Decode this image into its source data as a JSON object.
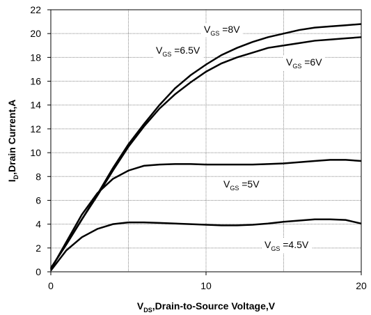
{
  "chart_data": {
    "type": "line",
    "x_label": {
      "text": "V",
      "sub": "DS",
      "after": ",Drain-to-Source Voltage,V"
    },
    "y_label": {
      "text": "I",
      "sub": "D",
      "after": ",Drain Current,A"
    },
    "x": [
      0,
      1,
      2,
      3,
      4,
      5,
      6,
      7,
      8,
      9,
      10,
      11,
      12,
      13,
      14,
      15,
      16,
      17,
      18,
      19,
      20
    ],
    "series": [
      {
        "color": "#000000",
        "values": [
          0.3,
          2.3,
          4.4,
          6.5,
          8.7,
          10.7,
          12.4,
          14.0,
          15.4,
          16.5,
          17.4,
          18.2,
          18.8,
          19.3,
          19.7,
          20.0,
          20.3,
          20.5,
          20.6,
          20.7,
          20.8
        ]
      },
      {
        "color": "#000000",
        "values": [
          0.3,
          2.3,
          4.4,
          6.4,
          8.5,
          10.5,
          12.2,
          13.7,
          14.9,
          15.9,
          16.8,
          17.5,
          18.0,
          18.4,
          18.8,
          19.0,
          19.2,
          19.4,
          19.5,
          19.6,
          19.7
        ]
      },
      {
        "color": "#000000",
        "values": [
          0.2,
          2.5,
          4.8,
          6.6,
          7.8,
          8.5,
          8.9,
          9.0,
          9.05,
          9.05,
          9.0,
          9.0,
          9.0,
          9.0,
          9.05,
          9.1,
          9.2,
          9.3,
          9.4,
          9.4,
          9.3
        ]
      },
      {
        "color": "#000000",
        "values": [
          0.1,
          1.8,
          2.9,
          3.6,
          4.0,
          4.15,
          4.15,
          4.1,
          4.05,
          4.0,
          3.95,
          3.9,
          3.9,
          3.95,
          4.05,
          4.2,
          4.3,
          4.4,
          4.4,
          4.35,
          4.05
        ]
      }
    ],
    "annotations": [
      {
        "text": "V",
        "sub": "GS",
        "after": " =8V"
      },
      {
        "text": "V",
        "sub": "GS",
        "after": " =6.5V"
      },
      {
        "text": "V",
        "sub": "GS",
        "after": " =6V"
      },
      {
        "text": "V",
        "sub": "GS",
        "after": " =5V"
      },
      {
        "text": "V",
        "sub": "GS",
        "after": " =4.5V"
      }
    ],
    "xlim": [
      0,
      20
    ],
    "xticks": [
      0,
      10,
      20
    ],
    "xgrid": [
      5,
      10,
      15
    ],
    "ylim": [
      0,
      22
    ],
    "yticks": [
      0,
      2,
      4,
      6,
      8,
      10,
      12,
      14,
      16,
      18,
      20,
      22
    ],
    "grid": true
  }
}
